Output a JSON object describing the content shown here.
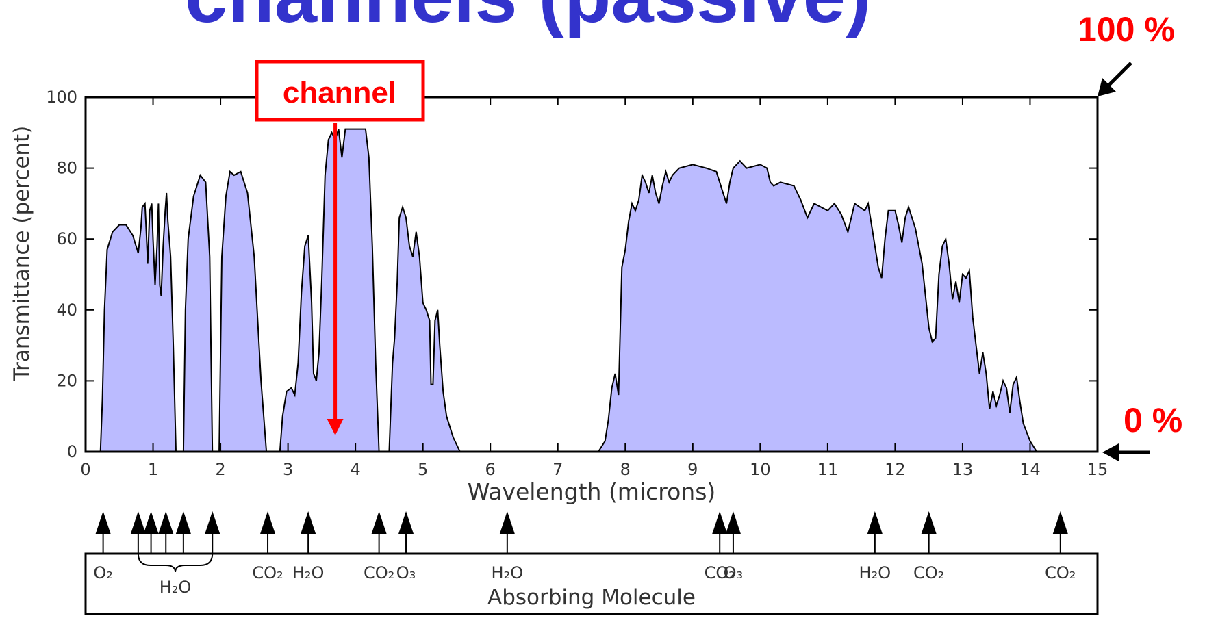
{
  "slide_title": "channels (passive)",
  "callouts": {
    "top_label": "100 %",
    "bottom_label": "0 %",
    "channel_label": "channel",
    "channel_wavelength": 3.7,
    "color": "#ff0000"
  },
  "colors": {
    "fill": "#bbbbff",
    "title": "#3333cc",
    "callout": "#ff0000",
    "line": "#000000"
  },
  "chart_data": {
    "type": "area",
    "xlabel": "Wavelength (microns)",
    "ylabel": "Transmittance (percent)",
    "xlim": [
      0,
      15
    ],
    "ylim": [
      0,
      100
    ],
    "xticks": [
      "0",
      "1",
      "2",
      "3",
      "4",
      "5",
      "6",
      "7",
      "8",
      "9",
      "10",
      "11",
      "12",
      "13",
      "14",
      "15"
    ],
    "yticks": [
      "0",
      "20",
      "40",
      "60",
      "80",
      "100"
    ],
    "grid": false,
    "series": [
      {
        "values": [
          [
            0,
            0
          ],
          [
            0.22,
            0
          ],
          [
            0.25,
            15
          ],
          [
            0.28,
            40
          ],
          [
            0.32,
            57
          ],
          [
            0.4,
            62
          ],
          [
            0.5,
            64
          ],
          [
            0.6,
            64
          ],
          [
            0.7,
            61
          ],
          [
            0.78,
            56
          ],
          [
            0.82,
            63
          ],
          [
            0.84,
            69
          ],
          [
            0.88,
            70
          ],
          [
            0.9,
            62
          ],
          [
            0.92,
            53
          ],
          [
            0.95,
            68
          ],
          [
            0.98,
            70
          ],
          [
            1.0,
            60
          ],
          [
            1.03,
            47
          ],
          [
            1.06,
            58
          ],
          [
            1.08,
            70
          ],
          [
            1.1,
            47
          ],
          [
            1.12,
            44
          ],
          [
            1.15,
            58
          ],
          [
            1.18,
            68
          ],
          [
            1.2,
            73
          ],
          [
            1.22,
            65
          ],
          [
            1.26,
            55
          ],
          [
            1.3,
            30
          ],
          [
            1.34,
            0
          ],
          [
            1.45,
            0
          ],
          [
            1.48,
            40
          ],
          [
            1.52,
            60
          ],
          [
            1.6,
            72
          ],
          [
            1.7,
            78
          ],
          [
            1.78,
            76
          ],
          [
            1.84,
            55
          ],
          [
            1.88,
            0
          ],
          [
            1.98,
            0
          ],
          [
            2.02,
            55
          ],
          [
            2.08,
            72
          ],
          [
            2.14,
            79
          ],
          [
            2.2,
            78
          ],
          [
            2.3,
            79
          ],
          [
            2.4,
            73
          ],
          [
            2.5,
            55
          ],
          [
            2.6,
            20
          ],
          [
            2.68,
            0
          ],
          [
            2.88,
            0
          ],
          [
            2.92,
            10
          ],
          [
            2.98,
            17
          ],
          [
            3.05,
            18
          ],
          [
            3.1,
            16
          ],
          [
            3.15,
            25
          ],
          [
            3.2,
            45
          ],
          [
            3.25,
            58
          ],
          [
            3.3,
            61
          ],
          [
            3.35,
            42
          ],
          [
            3.38,
            22
          ],
          [
            3.42,
            20
          ],
          [
            3.46,
            28
          ],
          [
            3.5,
            48
          ],
          [
            3.55,
            78
          ],
          [
            3.6,
            88
          ],
          [
            3.65,
            90
          ],
          [
            3.7,
            88
          ],
          [
            3.75,
            91
          ],
          [
            3.8,
            83
          ],
          [
            3.85,
            91
          ],
          [
            3.95,
            91
          ],
          [
            4.05,
            91
          ],
          [
            4.15,
            91
          ],
          [
            4.2,
            83
          ],
          [
            4.25,
            58
          ],
          [
            4.3,
            25
          ],
          [
            4.35,
            0
          ],
          [
            4.5,
            0
          ],
          [
            4.55,
            25
          ],
          [
            4.58,
            32
          ],
          [
            4.62,
            48
          ],
          [
            4.65,
            66
          ],
          [
            4.7,
            69
          ],
          [
            4.75,
            66
          ],
          [
            4.8,
            58
          ],
          [
            4.85,
            55
          ],
          [
            4.9,
            62
          ],
          [
            4.95,
            55
          ],
          [
            5.0,
            42
          ],
          [
            5.05,
            40
          ],
          [
            5.1,
            37
          ],
          [
            5.12,
            19
          ],
          [
            5.15,
            19
          ],
          [
            5.18,
            37
          ],
          [
            5.22,
            40
          ],
          [
            5.25,
            30
          ],
          [
            5.3,
            17
          ],
          [
            5.35,
            10
          ],
          [
            5.45,
            4
          ],
          [
            5.55,
            0
          ],
          [
            7.6,
            0
          ],
          [
            7.7,
            3
          ],
          [
            7.75,
            9
          ],
          [
            7.8,
            18
          ],
          [
            7.85,
            22
          ],
          [
            7.9,
            16
          ],
          [
            7.95,
            52
          ],
          [
            8.0,
            57
          ],
          [
            8.05,
            65
          ],
          [
            8.1,
            70
          ],
          [
            8.15,
            68
          ],
          [
            8.2,
            71
          ],
          [
            8.25,
            78
          ],
          [
            8.3,
            76
          ],
          [
            8.35,
            73
          ],
          [
            8.4,
            78
          ],
          [
            8.45,
            73
          ],
          [
            8.5,
            70
          ],
          [
            8.55,
            75
          ],
          [
            8.6,
            79
          ],
          [
            8.65,
            76
          ],
          [
            8.7,
            78
          ],
          [
            8.8,
            80
          ],
          [
            9.0,
            81
          ],
          [
            9.2,
            80
          ],
          [
            9.35,
            79
          ],
          [
            9.45,
            73
          ],
          [
            9.5,
            70
          ],
          [
            9.55,
            76
          ],
          [
            9.6,
            80
          ],
          [
            9.7,
            82
          ],
          [
            9.8,
            80
          ],
          [
            10.0,
            81
          ],
          [
            10.1,
            80
          ],
          [
            10.15,
            76
          ],
          [
            10.2,
            75
          ],
          [
            10.3,
            76
          ],
          [
            10.5,
            75
          ],
          [
            10.6,
            71
          ],
          [
            10.7,
            66
          ],
          [
            10.8,
            70
          ],
          [
            11.0,
            68
          ],
          [
            11.1,
            70
          ],
          [
            11.2,
            67
          ],
          [
            11.3,
            62
          ],
          [
            11.4,
            70
          ],
          [
            11.55,
            68
          ],
          [
            11.6,
            70
          ],
          [
            11.75,
            52
          ],
          [
            11.8,
            49
          ],
          [
            11.85,
            60
          ],
          [
            11.9,
            68
          ],
          [
            12.0,
            68
          ],
          [
            12.05,
            64
          ],
          [
            12.1,
            59
          ],
          [
            12.15,
            66
          ],
          [
            12.2,
            69
          ],
          [
            12.3,
            63
          ],
          [
            12.4,
            53
          ],
          [
            12.5,
            35
          ],
          [
            12.55,
            31
          ],
          [
            12.6,
            32
          ],
          [
            12.65,
            50
          ],
          [
            12.7,
            58
          ],
          [
            12.75,
            60
          ],
          [
            12.8,
            53
          ],
          [
            12.85,
            43
          ],
          [
            12.9,
            48
          ],
          [
            12.95,
            42
          ],
          [
            13.0,
            50
          ],
          [
            13.05,
            49
          ],
          [
            13.1,
            51
          ],
          [
            13.15,
            38
          ],
          [
            13.2,
            30
          ],
          [
            13.25,
            22
          ],
          [
            13.3,
            28
          ],
          [
            13.35,
            22
          ],
          [
            13.4,
            12
          ],
          [
            13.45,
            17
          ],
          [
            13.5,
            13
          ],
          [
            13.55,
            16
          ],
          [
            13.6,
            20
          ],
          [
            13.65,
            18
          ],
          [
            13.7,
            11
          ],
          [
            13.75,
            19
          ],
          [
            13.8,
            21
          ],
          [
            13.85,
            14
          ],
          [
            13.9,
            8
          ],
          [
            14.0,
            3
          ],
          [
            14.1,
            0
          ],
          [
            15,
            0
          ]
        ]
      }
    ],
    "molecule_panel": {
      "label": "Absorbing Molecule",
      "markers": [
        {
          "x": 0.26,
          "label": "O₂"
        },
        {
          "x": 0.78,
          "label": ""
        },
        {
          "x": 0.97,
          "label": ""
        },
        {
          "x": 1.19,
          "label": ""
        },
        {
          "x": 1.45,
          "label": ""
        },
        {
          "x": 1.88,
          "label": ""
        },
        {
          "x": 2.7,
          "label": "CO₂"
        },
        {
          "x": 3.3,
          "label": "H₂O"
        },
        {
          "x": 4.35,
          "label": "CO₂"
        },
        {
          "x": 4.75,
          "label": "O₃"
        },
        {
          "x": 6.25,
          "label": "H₂O"
        },
        {
          "x": 9.4,
          "label": "CO₂"
        },
        {
          "x": 9.6,
          "label": "O₃"
        },
        {
          "x": 11.7,
          "label": "H₂O"
        },
        {
          "x": 12.5,
          "label": "CO₂"
        },
        {
          "x": 14.45,
          "label": "CO₂"
        }
      ],
      "group_label": "H₂O",
      "group_range": [
        0.78,
        1.88
      ]
    }
  }
}
